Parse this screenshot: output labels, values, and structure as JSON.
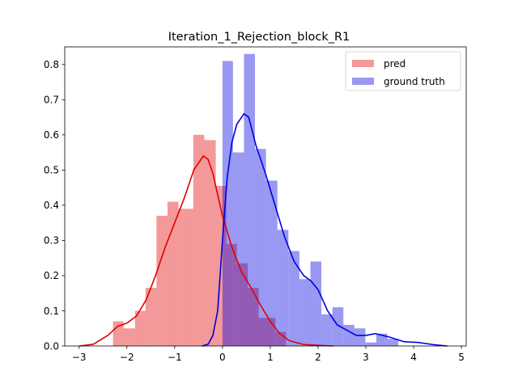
{
  "chart_data": {
    "type": "histogram",
    "title": "Iteration_1_Rejection_block_R1",
    "xlabel": "",
    "ylabel": "",
    "xlim": [
      -3.3,
      5.1
    ],
    "ylim": [
      0,
      0.85
    ],
    "x_ticks": [
      -3,
      -2,
      -1,
      0,
      1,
      2,
      3,
      4,
      5
    ],
    "y_ticks": [
      0.0,
      0.1,
      0.2,
      0.3,
      0.4,
      0.5,
      0.6,
      0.7,
      0.8
    ],
    "x_tick_labels": [
      "−3",
      "−2",
      "−1",
      "0",
      "1",
      "2",
      "3",
      "4",
      "5"
    ],
    "y_tick_labels": [
      "0.0",
      "0.1",
      "0.2",
      "0.3",
      "0.4",
      "0.5",
      "0.6",
      "0.7",
      "0.8"
    ],
    "grid": false,
    "legend_position": "top-right",
    "series": [
      {
        "name": "pred",
        "bar_color": "#ff9a9a",
        "line_color": "#e00000",
        "bins": [
          {
            "x0": -2.29,
            "x1": -2.07,
            "h": 0.07
          },
          {
            "x0": -2.07,
            "x1": -1.83,
            "h": 0.05
          },
          {
            "x0": -1.83,
            "x1": -1.61,
            "h": 0.1
          },
          {
            "x0": -1.61,
            "x1": -1.38,
            "h": 0.165
          },
          {
            "x0": -1.38,
            "x1": -1.15,
            "h": 0.37
          },
          {
            "x0": -1.15,
            "x1": -0.92,
            "h": 0.41
          },
          {
            "x0": -0.92,
            "x1": -0.61,
            "h": 0.39
          },
          {
            "x0": -0.61,
            "x1": -0.38,
            "h": 0.6
          },
          {
            "x0": -0.38,
            "x1": -0.14,
            "h": 0.585
          },
          {
            "x0": -0.14,
            "x1": 0.08,
            "h": 0.455
          },
          {
            "x0": 0.08,
            "x1": 0.3,
            "h": 0.29
          },
          {
            "x0": 0.3,
            "x1": 0.53,
            "h": 0.235
          },
          {
            "x0": 0.53,
            "x1": 0.76,
            "h": 0.165
          },
          {
            "x0": 0.76,
            "x1": 1.11,
            "h": 0.08
          },
          {
            "x0": 1.11,
            "x1": 1.33,
            "h": 0.04
          }
        ],
        "kde": [
          [
            -2.98,
            0.0
          ],
          [
            -2.7,
            0.005
          ],
          [
            -2.4,
            0.03
          ],
          [
            -2.2,
            0.055
          ],
          [
            -2.0,
            0.065
          ],
          [
            -1.8,
            0.085
          ],
          [
            -1.6,
            0.13
          ],
          [
            -1.4,
            0.2
          ],
          [
            -1.2,
            0.28
          ],
          [
            -1.0,
            0.35
          ],
          [
            -0.8,
            0.42
          ],
          [
            -0.6,
            0.5
          ],
          [
            -0.4,
            0.54
          ],
          [
            -0.3,
            0.53
          ],
          [
            -0.2,
            0.49
          ],
          [
            -0.1,
            0.43
          ],
          [
            0.0,
            0.37
          ],
          [
            0.2,
            0.28
          ],
          [
            0.4,
            0.21
          ],
          [
            0.6,
            0.165
          ],
          [
            0.8,
            0.115
          ],
          [
            1.0,
            0.07
          ],
          [
            1.2,
            0.035
          ],
          [
            1.4,
            0.015
          ],
          [
            1.7,
            0.004
          ],
          [
            2.0,
            0.002
          ],
          [
            2.3,
            0.0
          ]
        ]
      },
      {
        "name": "ground truth",
        "bar_color": "#9a9aff",
        "line_color": "#0000e0",
        "bins": [
          {
            "x0": 0.0,
            "x1": 0.22,
            "h": 0.81
          },
          {
            "x0": 0.22,
            "x1": 0.45,
            "h": 0.55
          },
          {
            "x0": 0.45,
            "x1": 0.68,
            "h": 0.83
          },
          {
            "x0": 0.68,
            "x1": 0.91,
            "h": 0.56
          },
          {
            "x0": 0.91,
            "x1": 1.15,
            "h": 0.47
          },
          {
            "x0": 1.15,
            "x1": 1.38,
            "h": 0.33
          },
          {
            "x0": 1.38,
            "x1": 1.61,
            "h": 0.27
          },
          {
            "x0": 1.61,
            "x1": 1.84,
            "h": 0.19
          },
          {
            "x0": 1.84,
            "x1": 2.07,
            "h": 0.24
          },
          {
            "x0": 2.07,
            "x1": 2.3,
            "h": 0.09
          },
          {
            "x0": 2.3,
            "x1": 2.53,
            "h": 0.11
          },
          {
            "x0": 2.53,
            "x1": 2.76,
            "h": 0.06
          },
          {
            "x0": 2.76,
            "x1": 2.99,
            "h": 0.05
          },
          {
            "x0": 2.99,
            "x1": 3.22,
            "h": 0.01
          },
          {
            "x0": 3.22,
            "x1": 3.45,
            "h": 0.035
          },
          {
            "x0": 3.45,
            "x1": 3.68,
            "h": 0.02
          }
        ],
        "kde": [
          [
            -0.42,
            0.0
          ],
          [
            -0.3,
            0.005
          ],
          [
            -0.2,
            0.03
          ],
          [
            -0.1,
            0.1
          ],
          [
            0.0,
            0.3
          ],
          [
            0.1,
            0.48
          ],
          [
            0.2,
            0.58
          ],
          [
            0.3,
            0.63
          ],
          [
            0.45,
            0.66
          ],
          [
            0.55,
            0.65
          ],
          [
            0.7,
            0.57
          ],
          [
            0.9,
            0.49
          ],
          [
            1.1,
            0.4
          ],
          [
            1.3,
            0.31
          ],
          [
            1.5,
            0.24
          ],
          [
            1.7,
            0.2
          ],
          [
            1.85,
            0.185
          ],
          [
            2.0,
            0.16
          ],
          [
            2.2,
            0.1
          ],
          [
            2.4,
            0.06
          ],
          [
            2.6,
            0.045
          ],
          [
            2.8,
            0.03
          ],
          [
            3.0,
            0.03
          ],
          [
            3.2,
            0.035
          ],
          [
            3.5,
            0.025
          ],
          [
            3.8,
            0.012
          ],
          [
            4.1,
            0.01
          ],
          [
            4.4,
            0.004
          ],
          [
            4.7,
            0.0
          ]
        ]
      }
    ]
  }
}
